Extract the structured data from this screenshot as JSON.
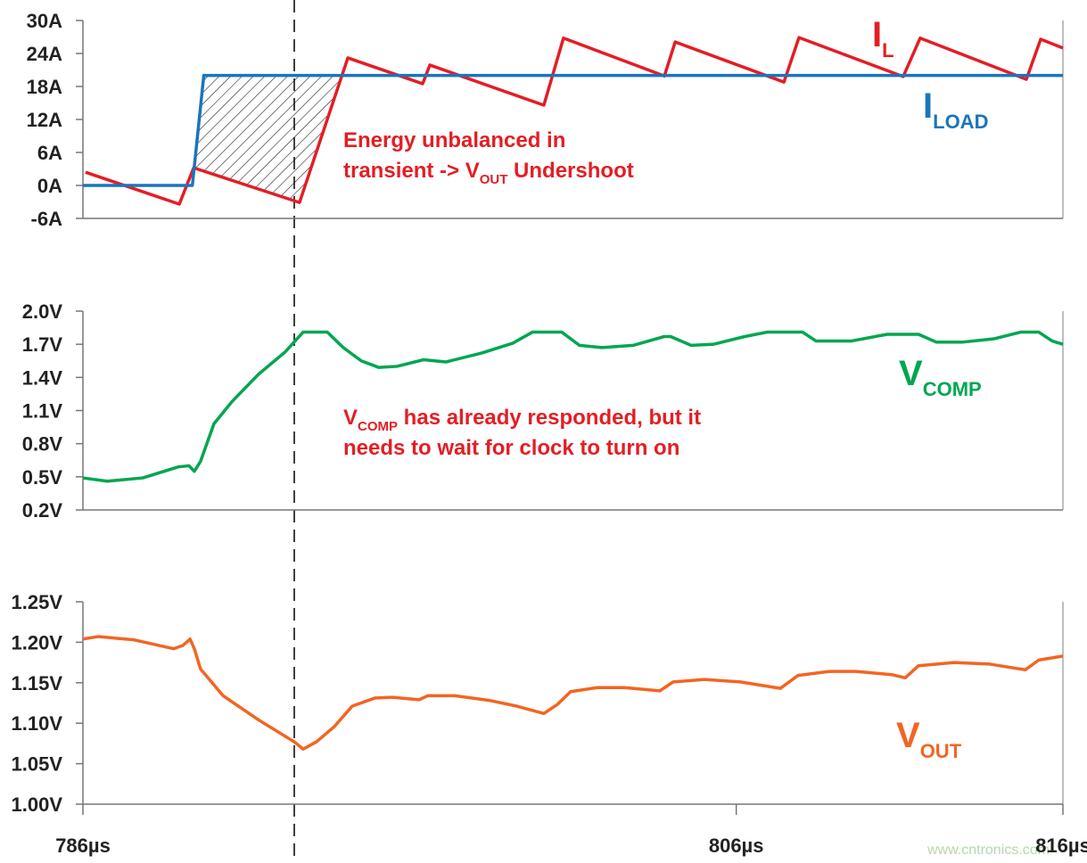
{
  "chart_data": [
    {
      "type": "line",
      "xlim": [
        786,
        816
      ],
      "ylim": [
        -6,
        30
      ],
      "yticks": [
        {
          "value": 30,
          "label": "30A"
        },
        {
          "value": 24,
          "label": "24A"
        },
        {
          "value": 18,
          "label": "18A"
        },
        {
          "value": 12,
          "label": "12A"
        },
        {
          "value": 6,
          "label": "6A"
        },
        {
          "value": 0,
          "label": "0A"
        },
        {
          "value": -6,
          "label": "-6A"
        }
      ],
      "annotation": [
        [
          "Energy unbalanced in"
        ],
        [
          "transient -> V",
          "OUT",
          " Undershoot"
        ]
      ],
      "series": [
        {
          "name": [
            "I",
            "L"
          ],
          "color": "#e31e24",
          "x": [
            786.08,
            788.95,
            789.39,
            792.63,
            794.11,
            796.4,
            796.62,
            800.11,
            800.71,
            803.8,
            804.13,
            807.46,
            807.92,
            811.11,
            811.63,
            814.88,
            815.32,
            816
          ],
          "values": [
            2.4,
            -3.4,
            3.2,
            -3.1,
            23.2,
            18.5,
            21.9,
            14.6,
            26.8,
            19.9,
            26.1,
            18.8,
            26.9,
            19.8,
            26.8,
            19.3,
            26.6,
            25.0
          ]
        },
        {
          "name": [
            "I",
            "LOAD"
          ],
          "color": "#1a75bc",
          "x": [
            786,
            789.35,
            789.7,
            816
          ],
          "values": [
            0,
            0,
            20,
            20
          ]
        }
      ]
    },
    {
      "type": "line",
      "xlim": [
        786,
        816
      ],
      "ylim": [
        0.2,
        2.0
      ],
      "yticks": [
        {
          "value": 2.0,
          "label": "2.0V"
        },
        {
          "value": 1.7,
          "label": "1.7V"
        },
        {
          "value": 1.4,
          "label": "1.4V"
        },
        {
          "value": 1.1,
          "label": "1.1V"
        },
        {
          "value": 0.8,
          "label": "0.8V"
        },
        {
          "value": 0.5,
          "label": "0.5V"
        },
        {
          "value": 0.2,
          "label": "0.2V"
        }
      ],
      "annotation": [
        [
          "V",
          "COMP",
          " has already responded, but it"
        ],
        [
          "needs to wait for clock to turn on"
        ]
      ],
      "series": [
        {
          "name": [
            "V",
            "COMP"
          ],
          "color": "#00a651",
          "x": [
            786,
            786.74,
            787.83,
            788.92,
            789.25,
            789.41,
            789.6,
            790.01,
            790.56,
            791.38,
            792.19,
            792.74,
            793.48,
            793.97,
            794.52,
            795.06,
            795.61,
            796.43,
            797.11,
            798.2,
            799.16,
            799.76,
            800.66,
            801.2,
            801.89,
            802.84,
            803.8,
            803.99,
            804.62,
            805.3,
            806.26,
            806.94,
            808.03,
            808.44,
            809.53,
            810.62,
            811.58,
            812.12,
            812.94,
            813.9,
            814.71,
            815.26,
            815.67,
            816
          ],
          "values": [
            0.49,
            0.46,
            0.49,
            0.59,
            0.6,
            0.55,
            0.64,
            0.98,
            1.18,
            1.43,
            1.63,
            1.81,
            1.81,
            1.67,
            1.55,
            1.49,
            1.5,
            1.56,
            1.54,
            1.62,
            1.71,
            1.81,
            1.81,
            1.69,
            1.67,
            1.69,
            1.77,
            1.77,
            1.69,
            1.7,
            1.77,
            1.81,
            1.81,
            1.73,
            1.73,
            1.79,
            1.79,
            1.72,
            1.72,
            1.75,
            1.81,
            1.81,
            1.73,
            1.7
          ]
        }
      ]
    },
    {
      "type": "line",
      "xlim": [
        786,
        816
      ],
      "xticks": [
        {
          "value": 786,
          "label": "786µs"
        },
        {
          "value": 806,
          "label": "806µs"
        },
        {
          "value": 816,
          "label": "816µs"
        }
      ],
      "ylim": [
        1.0,
        1.25
      ],
      "yticks": [
        {
          "value": 1.25,
          "label": "1.25V"
        },
        {
          "value": 1.2,
          "label": "1.20V"
        },
        {
          "value": 1.15,
          "label": "1.15V"
        },
        {
          "value": 1.1,
          "label": "1.10V"
        },
        {
          "value": 1.05,
          "label": "1.05V"
        },
        {
          "value": 1.0,
          "label": "1.00V"
        }
      ],
      "series": [
        {
          "name": [
            "V",
            "OUT"
          ],
          "color": "#f26522",
          "x": [
            786,
            786.46,
            787.56,
            788.78,
            789.06,
            789.28,
            789.41,
            789.6,
            790.29,
            791.38,
            792.47,
            792.74,
            793.15,
            793.7,
            794.24,
            794.93,
            795.47,
            796.29,
            796.56,
            797.38,
            798.47,
            799.29,
            800.11,
            800.52,
            800.93,
            801.75,
            802.57,
            803.66,
            804.07,
            805.03,
            806.12,
            807.35,
            807.89,
            808.85,
            809.67,
            810.76,
            811.17,
            811.58,
            812.67,
            813.76,
            814.85,
            815.26,
            816
          ],
          "values": [
            1.204,
            1.207,
            1.203,
            1.192,
            1.196,
            1.204,
            1.192,
            1.167,
            1.134,
            1.104,
            1.077,
            1.068,
            1.077,
            1.096,
            1.121,
            1.131,
            1.132,
            1.129,
            1.134,
            1.134,
            1.128,
            1.121,
            1.112,
            1.123,
            1.139,
            1.144,
            1.144,
            1.14,
            1.151,
            1.154,
            1.151,
            1.143,
            1.159,
            1.164,
            1.164,
            1.16,
            1.156,
            1.171,
            1.175,
            1.173,
            1.166,
            1.178,
            1.183
          ]
        }
      ]
    }
  ],
  "watermark": "www.cntronics.com"
}
